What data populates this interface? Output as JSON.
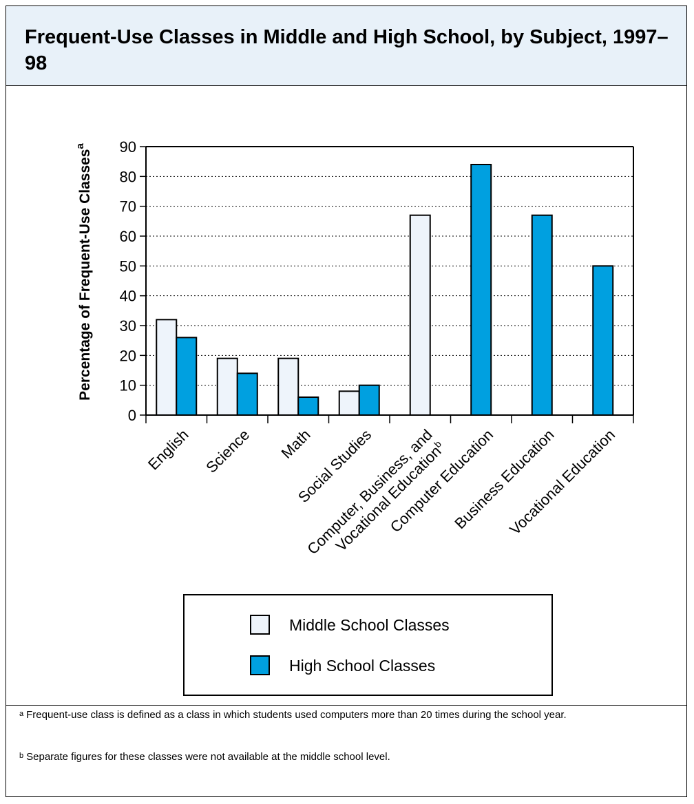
{
  "title": "Frequent-Use Classes in Middle and High School, by Subject, 1997–98",
  "chart_data": {
    "type": "bar",
    "title": "Frequent-Use Classes in Middle and High School, by Subject, 1997–98",
    "ylabel": "Percentage of Frequent-Use Classes",
    "ylabel_sup": "a",
    "xlabel": "",
    "ylim": [
      0,
      90
    ],
    "yticks": [
      0,
      10,
      20,
      30,
      40,
      50,
      60,
      70,
      80,
      90
    ],
    "grid": "horizontal dotted",
    "categories": [
      "English",
      "Science",
      "Math",
      "Social Studies",
      "Computer, Business, and Vocational Education",
      "Computer Education",
      "Business Education",
      "Vocational Education"
    ],
    "category_lines": [
      [
        "English"
      ],
      [
        "Science"
      ],
      [
        "Math"
      ],
      [
        "Social Studies"
      ],
      [
        "Computer, Business, and",
        "Vocational Education"
      ],
      [
        "Computer Education"
      ],
      [
        "Business Education"
      ],
      [
        "Vocational Education"
      ]
    ],
    "category_sup": [
      "",
      "",
      "",
      "",
      "b",
      "",
      "",
      ""
    ],
    "series": [
      {
        "name": "Middle School Classes",
        "color": "#eef4fb",
        "values": [
          32,
          19,
          19,
          8,
          67,
          null,
          null,
          null
        ]
      },
      {
        "name": "High School Classes",
        "color": "#00a0e0",
        "values": [
          26,
          14,
          6,
          10,
          null,
          84,
          67,
          50
        ]
      }
    ],
    "legend_position": "bottom-center"
  },
  "notes": [
    {
      "marker": "a",
      "text": "Frequent-use class is defined as a class in which students used computers more than 20 times during the school year."
    },
    {
      "marker": "b",
      "text": "Separate figures for these classes were not available at the middle school level."
    }
  ]
}
